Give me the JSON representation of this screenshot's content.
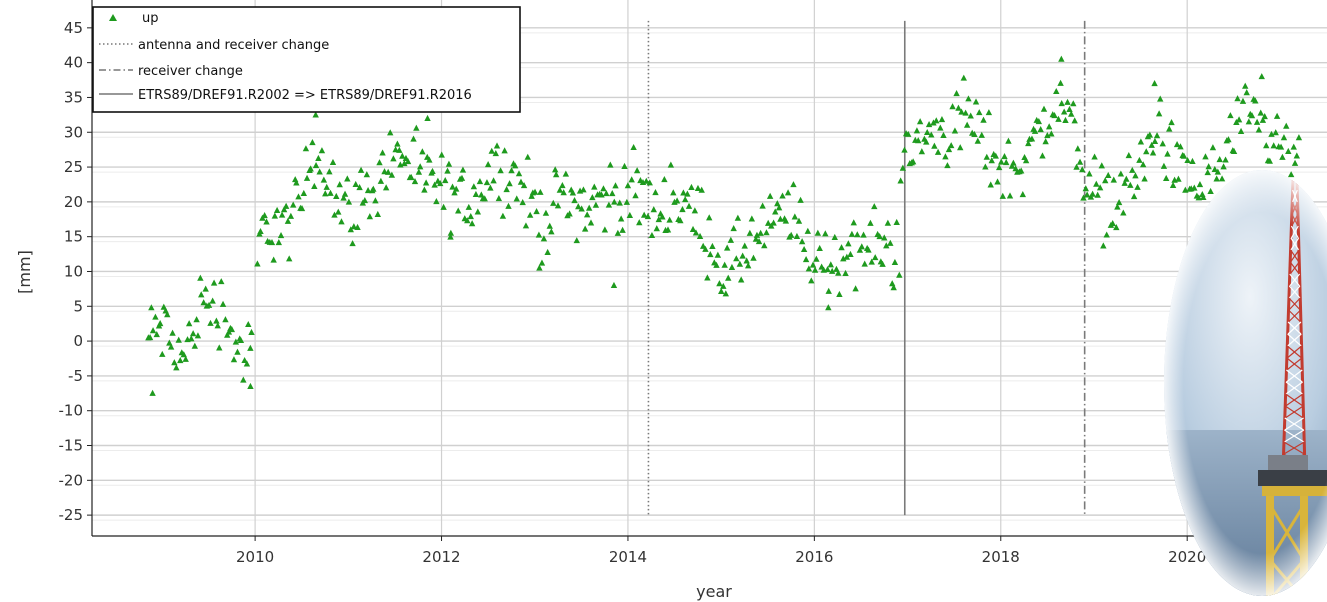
{
  "chart_data": {
    "type": "scatter",
    "xlabel": "year",
    "ylabel": "[mm]",
    "xlim": [
      2008.25,
      2021.5
    ],
    "ylim": [
      -28,
      49
    ],
    "x_ticks": [
      2010,
      2012,
      2014,
      2016,
      2018,
      2020
    ],
    "y_ticks": [
      45,
      40,
      35,
      30,
      25,
      20,
      15,
      10,
      5,
      0,
      -5,
      -10,
      -15,
      -20,
      -25
    ],
    "y_tick_labels": [
      "45",
      "40",
      "35",
      "30",
      "25",
      "20",
      "15",
      "10",
      "5",
      "0",
      "-5",
      "-10",
      "-15",
      "-20",
      "-25"
    ],
    "grid": true,
    "legend_position": "top-left",
    "legend": [
      {
        "label": "up",
        "style": "marker"
      },
      {
        "label": "antenna and receiver change",
        "style": "dotted"
      },
      {
        "label": "receiver change",
        "style": "dashdot"
      },
      {
        "label": "ETRS89/DREF91.R2002 => ETRS89/DREF91.R2016",
        "style": "solid"
      }
    ],
    "vertical_lines": [
      {
        "x": 2014.22,
        "style": "dotted",
        "y_from": -25,
        "y_to": 46
      },
      {
        "x": 2016.97,
        "style": "solid",
        "y_from": -25,
        "y_to": 46
      },
      {
        "x": 2018.9,
        "style": "dashdot",
        "y_from": -25,
        "y_to": 46
      }
    ],
    "series": [
      {
        "name": "up",
        "color": "#1e9a1e",
        "marker": "triangle",
        "anchors": [
          [
            2008.85,
            0
          ],
          [
            2008.95,
            2
          ],
          [
            2009.05,
            1
          ],
          [
            2009.15,
            -1
          ],
          [
            2009.25,
            -3
          ],
          [
            2009.35,
            3
          ],
          [
            2009.45,
            6
          ],
          [
            2009.55,
            5
          ],
          [
            2009.65,
            5
          ],
          [
            2009.75,
            1
          ],
          [
            2009.85,
            -2
          ],
          [
            2009.95,
            -3
          ],
          [
            2010.05,
            15
          ],
          [
            2010.2,
            17
          ],
          [
            2010.35,
            16
          ],
          [
            2010.5,
            20
          ],
          [
            2010.6,
            27
          ],
          [
            2010.75,
            26
          ],
          [
            2010.9,
            20
          ],
          [
            2011.0,
            19
          ],
          [
            2011.15,
            20
          ],
          [
            2011.3,
            23
          ],
          [
            2011.45,
            26
          ],
          [
            2011.6,
            27
          ],
          [
            2011.75,
            23
          ],
          [
            2011.9,
            23
          ],
          [
            2012.05,
            21
          ],
          [
            2012.2,
            20
          ],
          [
            2012.35,
            21
          ],
          [
            2012.5,
            24
          ],
          [
            2012.65,
            25
          ],
          [
            2012.8,
            23
          ],
          [
            2012.95,
            20
          ],
          [
            2013.1,
            17
          ],
          [
            2013.25,
            20
          ],
          [
            2013.4,
            21
          ],
          [
            2013.55,
            19
          ],
          [
            2013.7,
            20
          ],
          [
            2013.85,
            21
          ],
          [
            2014.0,
            21
          ],
          [
            2014.15,
            21
          ],
          [
            2014.3,
            18
          ],
          [
            2014.45,
            21
          ],
          [
            2014.6,
            20
          ],
          [
            2014.75,
            17
          ],
          [
            2014.9,
            15
          ],
          [
            2015.0,
            10
          ],
          [
            2015.15,
            11
          ],
          [
            2015.3,
            14
          ],
          [
            2015.45,
            15
          ],
          [
            2015.6,
            17
          ],
          [
            2015.75,
            19
          ],
          [
            2015.9,
            13
          ],
          [
            2016.05,
            12
          ],
          [
            2016.2,
            11
          ],
          [
            2016.35,
            13
          ],
          [
            2016.5,
            13
          ],
          [
            2016.65,
            14
          ],
          [
            2016.85,
            13
          ],
          [
            2017.0,
            26
          ],
          [
            2017.15,
            29
          ],
          [
            2017.3,
            30
          ],
          [
            2017.45,
            30
          ],
          [
            2017.6,
            33
          ],
          [
            2017.75,
            30
          ],
          [
            2017.9,
            27
          ],
          [
            2018.05,
            24
          ],
          [
            2018.2,
            26
          ],
          [
            2018.35,
            28
          ],
          [
            2018.5,
            32
          ],
          [
            2018.65,
            34
          ],
          [
            2018.8,
            30
          ],
          [
            2018.95,
            22
          ],
          [
            2019.1,
            20
          ],
          [
            2019.25,
            20
          ],
          [
            2019.4,
            23
          ],
          [
            2019.55,
            26
          ],
          [
            2019.7,
            31
          ],
          [
            2019.85,
            25
          ],
          [
            2020.0,
            23
          ],
          [
            2020.15,
            22
          ],
          [
            2020.3,
            24
          ],
          [
            2020.45,
            28
          ],
          [
            2020.6,
            31
          ],
          [
            2020.75,
            31
          ],
          [
            2020.95,
            28
          ],
          [
            2021.2,
            25
          ]
        ],
        "outliers": [
          [
            2008.9,
            -7.5
          ],
          [
            2010.65,
            32.5
          ],
          [
            2011.85,
            32
          ],
          [
            2012.75,
            33.8
          ],
          [
            2013.85,
            8
          ],
          [
            2016.15,
            4.8
          ],
          [
            2018.65,
            40.5
          ],
          [
            2019.65,
            37
          ],
          [
            2020.8,
            38
          ],
          [
            2013.05,
            10.5
          ],
          [
            2015.05,
            6.8
          ],
          [
            2009.95,
            -6.5
          ],
          [
            2012.1,
            15.5
          ]
        ]
      }
    ]
  }
}
